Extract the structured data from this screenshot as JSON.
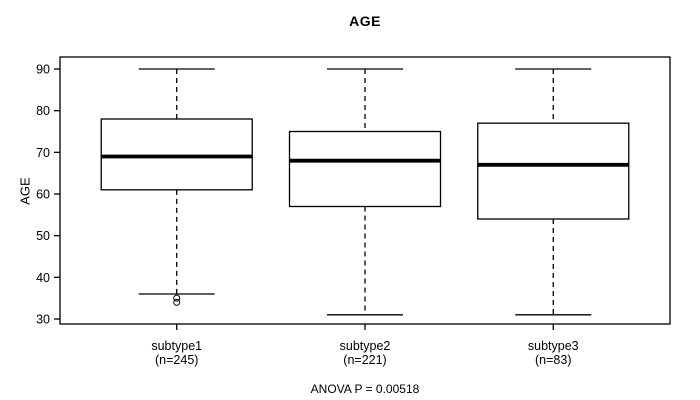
{
  "chart_data": {
    "type": "boxplot",
    "title": "AGE",
    "ylabel": "AGE",
    "xlabel": "",
    "footer_annotation": "ANOVA P = 0.00518",
    "ylim": [
      28.8,
      92.9
    ],
    "yticks": [
      30,
      40,
      50,
      60,
      70,
      80,
      90
    ],
    "grid": false,
    "legend": "none",
    "colors": {
      "line": "#000000",
      "background": "#ffffff"
    },
    "groups": [
      {
        "label": "subtype1",
        "sublabel": "(n=245)",
        "n": 245,
        "whisker_low": 36,
        "q1": 61,
        "median": 69,
        "q3": 78,
        "whisker_high": 90,
        "outliers": [
          35,
          34
        ]
      },
      {
        "label": "subtype2",
        "sublabel": "(n=221)",
        "n": 221,
        "whisker_low": 31,
        "q1": 57,
        "median": 68,
        "q3": 75,
        "whisker_high": 90,
        "outliers": []
      },
      {
        "label": "subtype3",
        "sublabel": "(n=83)",
        "n": 83,
        "whisker_low": 31,
        "q1": 54,
        "median": 67,
        "q3": 77,
        "whisker_high": 90,
        "outliers": []
      }
    ]
  }
}
